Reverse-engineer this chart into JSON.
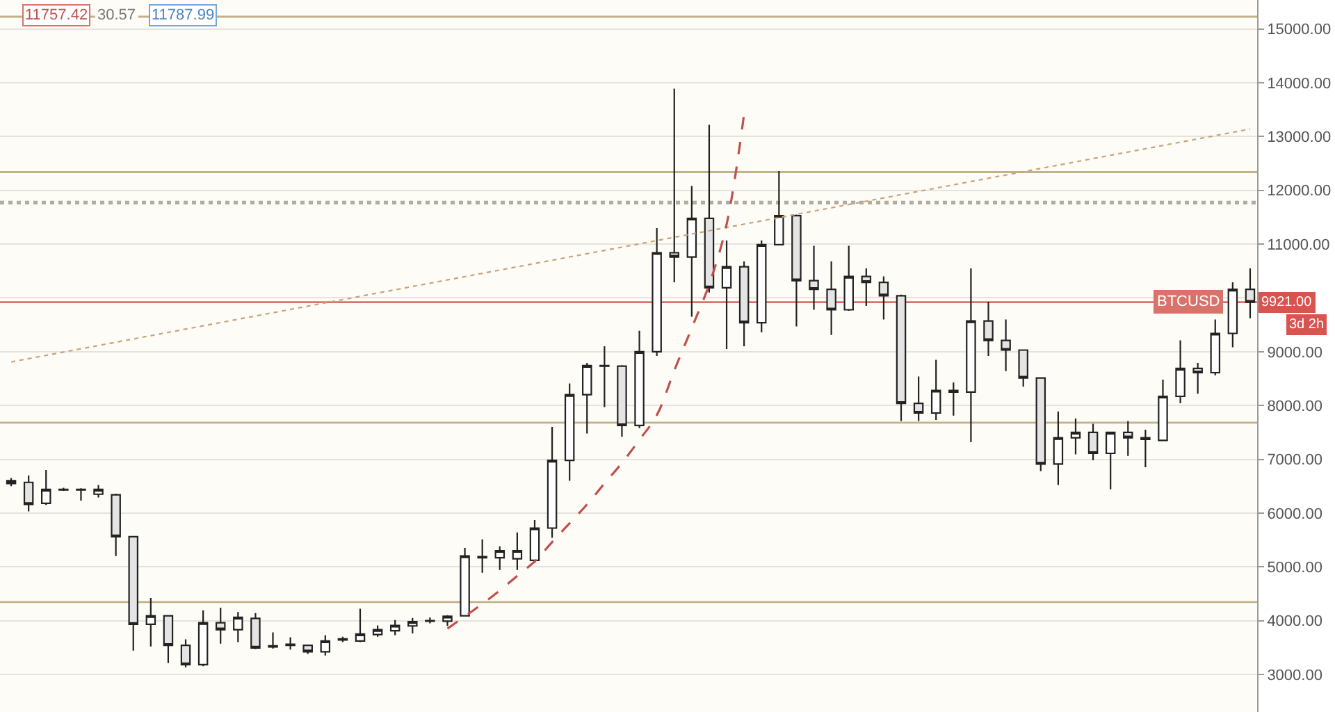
{
  "chart_data": {
    "type": "candlestick",
    "categories": [
      null,
      null,
      null,
      null,
      null,
      null,
      null,
      null,
      null,
      null,
      null,
      null,
      null,
      null,
      null,
      null,
      null,
      null,
      null,
      null,
      null,
      null,
      null,
      null,
      null,
      null,
      null,
      null,
      null,
      null,
      null,
      null,
      null,
      null,
      null,
      null,
      null,
      null,
      null,
      null,
      null,
      null,
      null,
      null,
      null,
      null,
      null,
      null,
      null,
      null,
      null,
      null,
      null,
      null,
      null,
      null,
      null,
      null,
      null,
      null,
      null,
      null,
      null,
      null,
      null,
      null,
      null,
      null,
      null,
      null,
      null,
      null
    ],
    "ohlc": [
      [
        6600,
        6650,
        6500,
        6550
      ],
      [
        6570,
        6700,
        6030,
        6160
      ],
      [
        6180,
        6800,
        6150,
        6440
      ],
      [
        6440,
        6470,
        6410,
        6430
      ],
      [
        6440,
        6460,
        6230,
        6430
      ],
      [
        6350,
        6520,
        6290,
        6440
      ],
      [
        6340,
        6360,
        5200,
        5560
      ],
      [
        5560,
        5560,
        3440,
        3930
      ],
      [
        3930,
        4420,
        3520,
        4090
      ],
      [
        4090,
        4100,
        3210,
        3540
      ],
      [
        3540,
        3650,
        3130,
        3180
      ],
      [
        3180,
        4190,
        3150,
        3960
      ],
      [
        3960,
        4240,
        3570,
        3830
      ],
      [
        3830,
        4160,
        3600,
        4060
      ],
      [
        4040,
        4140,
        3470,
        3490
      ],
      [
        3530,
        3780,
        3480,
        3510
      ],
      [
        3560,
        3690,
        3460,
        3540
      ],
      [
        3540,
        3550,
        3380,
        3420
      ],
      [
        3420,
        3730,
        3350,
        3620
      ],
      [
        3640,
        3700,
        3600,
        3660
      ],
      [
        3620,
        4220,
        3600,
        3750
      ],
      [
        3740,
        3910,
        3700,
        3830
      ],
      [
        3810,
        4010,
        3730,
        3910
      ],
      [
        3900,
        4050,
        3760,
        3980
      ],
      [
        3990,
        4060,
        3950,
        4000
      ],
      [
        3990,
        4100,
        3900,
        4080
      ],
      [
        4090,
        5350,
        4080,
        5200
      ],
      [
        5190,
        5510,
        4890,
        5170
      ],
      [
        5170,
        5380,
        4940,
        5300
      ],
      [
        5150,
        5640,
        4940,
        5300
      ],
      [
        5120,
        5870,
        5070,
        5720
      ],
      [
        5720,
        7600,
        5540,
        6980
      ],
      [
        6980,
        8410,
        6600,
        8200
      ],
      [
        8200,
        8790,
        7480,
        8740
      ],
      [
        8740,
        9100,
        7970,
        8730
      ],
      [
        8730,
        8750,
        7420,
        7630
      ],
      [
        7630,
        9390,
        7580,
        9000
      ],
      [
        9000,
        11300,
        8920,
        10840
      ],
      [
        10840,
        13890,
        10290,
        10760
      ],
      [
        10760,
        12080,
        9650,
        11480
      ],
      [
        11480,
        13220,
        10100,
        10190
      ],
      [
        10190,
        11070,
        9050,
        10580
      ],
      [
        10580,
        10680,
        9100,
        9540
      ],
      [
        9540,
        11070,
        9360,
        10990
      ],
      [
        10990,
        12360,
        10980,
        11530
      ],
      [
        11530,
        11550,
        9470,
        10320
      ],
      [
        10320,
        10970,
        9780,
        10160
      ],
      [
        10160,
        10680,
        9310,
        9780
      ],
      [
        9780,
        10970,
        9760,
        10400
      ],
      [
        10400,
        10550,
        9850,
        10290
      ],
      [
        10290,
        10400,
        9600,
        10040
      ],
      [
        10040,
        10060,
        7710,
        8040
      ],
      [
        8040,
        8540,
        7710,
        7860
      ],
      [
        7860,
        8850,
        7730,
        8280
      ],
      [
        8280,
        8430,
        7810,
        8250
      ],
      [
        8250,
        10550,
        7320,
        9570
      ],
      [
        9570,
        9930,
        8920,
        9210
      ],
      [
        9210,
        9600,
        8640,
        9030
      ],
      [
        9030,
        9040,
        8350,
        8510
      ],
      [
        8510,
        8520,
        6780,
        6910
      ],
      [
        6910,
        7890,
        6520,
        7400
      ],
      [
        7400,
        7760,
        7090,
        7500
      ],
      [
        7500,
        7660,
        6980,
        7110
      ],
      [
        7110,
        7510,
        6440,
        7500
      ],
      [
        7500,
        7710,
        7060,
        7400
      ],
      [
        7400,
        7550,
        6850,
        7370
      ],
      [
        7350,
        8480,
        7340,
        8170
      ],
      [
        8170,
        9210,
        8040,
        8690
      ],
      [
        8690,
        8790,
        8220,
        8610
      ],
      [
        8610,
        9600,
        8560,
        9340
      ],
      [
        9340,
        10290,
        9080,
        10160
      ],
      [
        10160,
        10550,
        9620,
        9921
      ]
    ],
    "series": [
      {
        "type": "line",
        "color": "#c8a27a",
        "line_style": "dotted",
        "values": [
          8810,
          null,
          null,
          null,
          null,
          null,
          null,
          null,
          null,
          null,
          null,
          null,
          null,
          null,
          null,
          null,
          null,
          null,
          null,
          null,
          null,
          null,
          null,
          null,
          null,
          null,
          null,
          null,
          null,
          null,
          null,
          null,
          null,
          null,
          null,
          null,
          null,
          null,
          null,
          null,
          null,
          null,
          null,
          null,
          null,
          null,
          null,
          null,
          null,
          null,
          null,
          null,
          null,
          null,
          null,
          null,
          null,
          null,
          null,
          null,
          null,
          null,
          null,
          null,
          null,
          null,
          null,
          null,
          null,
          null,
          null,
          13140
        ]
      },
      {
        "type": "line",
        "color": "#c0504d",
        "line_style": "dashed",
        "values": [
          null,
          null,
          null,
          null,
          null,
          null,
          null,
          null,
          null,
          null,
          null,
          null,
          null,
          null,
          null,
          null,
          null,
          null,
          null,
          null,
          null,
          null,
          null,
          null,
          null,
          3850,
          4080,
          4310,
          4560,
          4830,
          5100,
          5460,
          5810,
          6160,
          6550,
          6930,
          7360,
          7820,
          8650,
          9440,
          10250,
          11370,
          13420,
          null,
          null,
          null,
          null,
          null,
          null,
          null,
          null,
          null,
          null,
          null,
          null,
          null,
          null,
          null,
          null,
          null,
          null,
          null,
          null,
          null,
          null,
          null,
          null,
          null,
          null,
          null,
          null,
          null
        ]
      }
    ],
    "ylim": [
      2300,
      15540
    ],
    "yticks": [
      {
        "value": 3000,
        "label": "3000.00"
      },
      {
        "value": 4000,
        "label": "4000.00"
      },
      {
        "value": 5000,
        "label": "5000.00"
      },
      {
        "value": 6000,
        "label": "6000.00"
      },
      {
        "value": 7000,
        "label": "7000.00"
      },
      {
        "value": 8000,
        "label": "8000.00"
      },
      {
        "value": 9000,
        "label": "9000.00"
      },
      {
        "value": 10000,
        "label": null
      },
      {
        "value": 11000,
        "label": "11000.00"
      },
      {
        "value": 12000,
        "label": "12000.00"
      },
      {
        "value": 13000,
        "label": "13000.00"
      },
      {
        "value": 14000,
        "label": "14000.00"
      },
      {
        "value": 15000,
        "label": "15000.00"
      }
    ],
    "ref_lines": [
      {
        "axis": "y",
        "value": 15230,
        "color": "#c2b18a"
      },
      {
        "axis": "y",
        "value": 12340,
        "color": "#c2b18a"
      },
      {
        "axis": "y",
        "value": 11787.99,
        "color": "#b0a89a",
        "line_style": "dotted"
      },
      {
        "axis": "y",
        "value": 11757.42,
        "color": "#b0a89a",
        "line_style": "dotted"
      },
      {
        "axis": "y",
        "value": 9921,
        "color": "#d9726b",
        "label": "BTCUSD"
      },
      {
        "axis": "y",
        "value": 7680,
        "color": "#c2b18a"
      },
      {
        "axis": "y",
        "value": 4345,
        "color": "#c2b18a"
      }
    ],
    "annotations": [
      "11757.42",
      "30.57",
      "11787.99",
      "9921.00",
      "3d 2h"
    ],
    "grid": "y"
  }
}
